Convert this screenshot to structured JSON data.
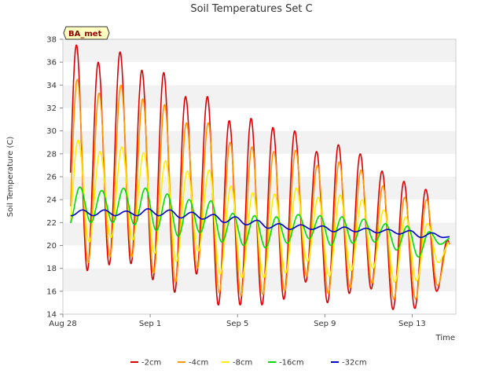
{
  "chart_data": {
    "type": "line",
    "title": "Soil Temperatures Set C",
    "xlabel": "Time",
    "ylabel": "Soil Temperature (C)",
    "site_label": "BA_met",
    "xlim": [
      "2019-08-28",
      "2019-09-15"
    ],
    "ylim": [
      14,
      38
    ],
    "y_ticks": [
      14,
      16,
      18,
      20,
      22,
      24,
      26,
      28,
      30,
      32,
      34,
      36,
      38
    ],
    "x_ticks": [
      {
        "date": "2019-08-28",
        "label": "Aug 28"
      },
      {
        "date": "2019-09-01",
        "label": "Sep 1"
      },
      {
        "date": "2019-09-05",
        "label": "Sep 5"
      },
      {
        "date": "2019-09-09",
        "label": "Sep 9"
      },
      {
        "date": "2019-09-13",
        "label": "Sep 13"
      }
    ],
    "grid": "horizontal bands",
    "legend_position": "bottom",
    "days": [
      "2019-08-28",
      "2019-08-29",
      "2019-08-30",
      "2019-08-31",
      "2019-09-01",
      "2019-09-02",
      "2019-09-03",
      "2019-09-04",
      "2019-09-05",
      "2019-09-06",
      "2019-09-07",
      "2019-09-08",
      "2019-09-09",
      "2019-09-10",
      "2019-09-11",
      "2019-09-12",
      "2019-09-13",
      "2019-09-14"
    ],
    "series": [
      {
        "name": "-2cm",
        "color": "#dd0000",
        "daily_max": [
          37.5,
          36.0,
          36.9,
          35.3,
          35.1,
          33.0,
          33.0,
          30.9,
          31.1,
          30.3,
          30.0,
          28.2,
          28.8,
          28.0,
          26.5,
          25.6,
          24.9,
          null
        ],
        "daily_min": [
          17.7,
          17.8,
          18.3,
          18.4,
          17.0,
          15.9,
          17.5,
          14.8,
          14.8,
          14.8,
          15.3,
          16.8,
          15.0,
          15.8,
          16.2,
          14.4,
          14.5,
          16.0
        ]
      },
      {
        "name": "-4cm",
        "color": "#ff9900",
        "daily_max": [
          34.5,
          33.3,
          34.0,
          32.8,
          32.3,
          30.7,
          30.7,
          29.0,
          28.6,
          28.2,
          28.3,
          27.0,
          27.3,
          26.6,
          25.2,
          24.2,
          24.0,
          null
        ],
        "daily_min": [
          18.3,
          18.5,
          19.0,
          19.0,
          17.6,
          16.8,
          18.0,
          15.9,
          15.6,
          15.7,
          16.0,
          17.3,
          15.8,
          16.3,
          16.7,
          15.3,
          15.3,
          16.5
        ]
      },
      {
        "name": "-8cm",
        "color": "#ffee00",
        "daily_max": [
          29.2,
          28.2,
          28.6,
          28.1,
          27.4,
          26.5,
          26.6,
          25.2,
          24.6,
          24.5,
          25.0,
          24.2,
          24.4,
          24.0,
          23.1,
          22.5,
          21.9,
          null
        ],
        "daily_min": [
          20.2,
          20.3,
          20.7,
          20.5,
          19.3,
          18.6,
          19.5,
          17.5,
          17.2,
          17.2,
          17.6,
          18.6,
          17.3,
          17.8,
          18.0,
          16.8,
          16.9,
          18.5
        ]
      },
      {
        "name": "-16cm",
        "color": "#00dd00",
        "daily_max": [
          25.1,
          24.8,
          25.0,
          25.0,
          24.5,
          24.0,
          23.9,
          22.8,
          22.6,
          22.5,
          22.7,
          22.6,
          22.5,
          22.3,
          21.9,
          21.7,
          21.2,
          null
        ],
        "daily_min": [
          21.8,
          22.0,
          22.0,
          21.8,
          21.3,
          20.8,
          21.1,
          20.3,
          20.0,
          19.8,
          20.2,
          20.6,
          20.0,
          20.2,
          20.3,
          19.6,
          19.0,
          20.1
        ]
      },
      {
        "name": "-32cm",
        "color": "#0000cc",
        "daily_max": [
          23.1,
          23.1,
          23.0,
          23.2,
          23.1,
          22.9,
          22.7,
          22.5,
          22.2,
          21.9,
          21.8,
          21.7,
          21.6,
          21.5,
          21.4,
          21.3,
          21.1,
          20.8
        ],
        "daily_min": [
          22.6,
          22.6,
          22.6,
          22.6,
          22.6,
          22.4,
          22.3,
          22.0,
          21.8,
          21.5,
          21.4,
          21.4,
          21.2,
          21.2,
          21.1,
          21.0,
          20.7,
          20.7
        ]
      }
    ]
  }
}
